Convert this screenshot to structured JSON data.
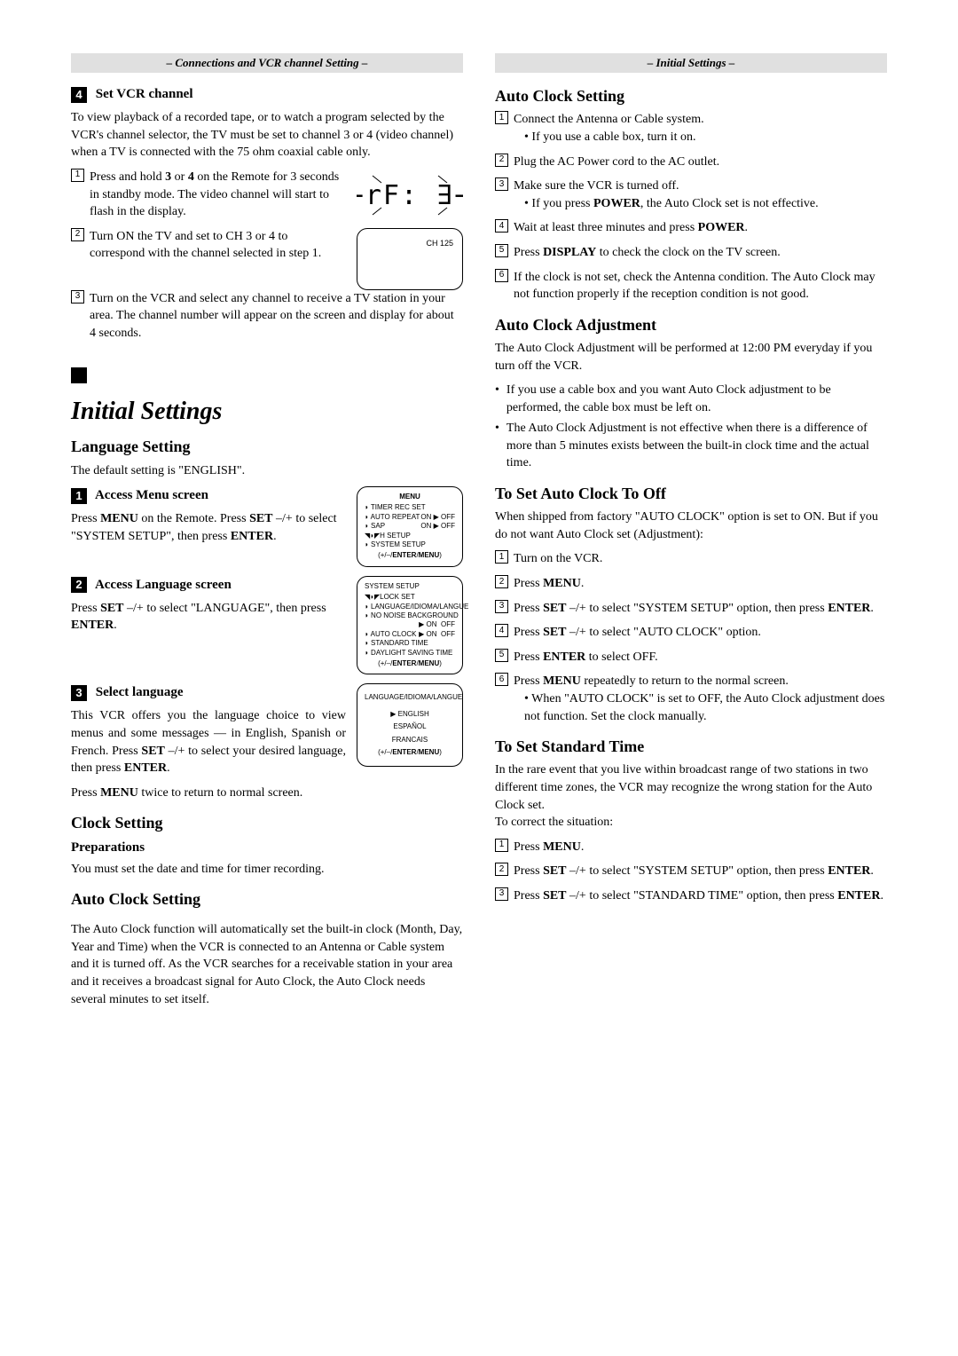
{
  "left": {
    "section_bar": "– Connections and VCR channel Setting –",
    "step4": {
      "num": "4",
      "title": "Set VCR channel",
      "intro": "To view playback of a recorded tape, or to watch a program selected by the VCR's channel selector, the TV must be set to channel 3 or 4 (video channel) when a TV is connected with the 75 ohm coaxial cable only.",
      "items": [
        "Press and hold 3 or 4 on the Remote for 3 seconds in standby mode. The video channel will start to flash in the display.",
        "Turn ON the TV and set to CH 3 or 4 to correspond with the channel selected in step 1.",
        "Turn on the VCR and select any channel to receive a TV station in your area. The channel number will appear on the screen and display for about 4 seconds."
      ],
      "seg_display": "−rF: ∃−",
      "ch_label": "CH 125"
    },
    "initial_title": "Initial Settings",
    "lang": {
      "heading": "Language Setting",
      "default": "The default setting is \"ENGLISH\".",
      "s1": {
        "num": "1",
        "title": "Access Menu screen",
        "body": "Press MENU on the Remote. Press SET –/+ to select \"SYSTEM SETUP\", then press ENTER."
      },
      "s2": {
        "num": "2",
        "title": "Access Language screen",
        "body": "Press SET –/+ to select \"LANGUAGE\", then press ENTER."
      },
      "s3": {
        "num": "3",
        "title": "Select language",
        "body": "This VCR offers you the language choice to view menus and some messages — in English, Spanish or French. Press SET –/+ to select your desired language, then press ENTER.",
        "tail": "Press MENU twice to return to normal screen."
      }
    },
    "menu1": {
      "hdr": "MENU",
      "rows": [
        [
          "◗ TIMER REC SET",
          ""
        ],
        [
          "◗ AUTO REPEAT",
          "ON ▶ OFF"
        ],
        [
          "◗ SAP",
          "ON ▶ OFF"
        ],
        [
          "◥◗◤H SETUP",
          ""
        ],
        [
          "◗ SYSTEM SETUP",
          ""
        ]
      ],
      "ftr": "(+/–/ENTER/MENU)"
    },
    "menu2": {
      "hdr": "SYSTEM SETUP",
      "rows": [
        [
          "◥◗◤LOCK SET",
          ""
        ],
        [
          "◗ LANGUAGE/IDIOMA/LANGUE",
          ""
        ],
        [
          "◗ NO NOISE BACKGROUND",
          ""
        ],
        [
          "",
          "▶ ON  OFF"
        ],
        [
          "◗ AUTO CLOCK",
          "▶ ON  OFF"
        ],
        [
          "◗ STANDARD TIME",
          ""
        ],
        [
          "◗ DAYLIGHT SAVING TIME",
          ""
        ]
      ],
      "ftr": "(+/–/ENTER/MENU)"
    },
    "menu3": {
      "hdr": "LANGUAGE/IDIOMA/LANGUE",
      "opts": [
        "▶ ENGLISH",
        "ESPAÑOL",
        "FRANCAIS"
      ],
      "ftr": "(+/–/ENTER/MENU)"
    },
    "clock": {
      "heading": "Clock Setting",
      "prep_h": "Preparations",
      "prep_b": "You must set the date and time for timer recording.",
      "auto_h": "Auto Clock Setting",
      "auto_b": "The Auto Clock function will automatically set the built-in clock (Month, Day, Year and Time) when the VCR is connected to an Antenna or Cable system and it is turned off. As the VCR searches for a receivable station in your area and it receives a broadcast signal for Auto Clock, the Auto Clock needs several minutes to set itself."
    }
  },
  "right": {
    "section_bar": "– Initial Settings –",
    "auto_set": {
      "heading": "Auto Clock Setting",
      "items": [
        {
          "t": "Connect the Antenna or Cable system.",
          "sub": "• If you use a cable box, turn it on."
        },
        {
          "t": "Plug the AC Power cord to the AC outlet."
        },
        {
          "t": "Make sure the VCR is turned off.",
          "sub": "• If you press POWER, the Auto Clock set is not effective."
        },
        {
          "t": "Wait at least three minutes and press POWER."
        },
        {
          "t": "Press DISPLAY to check the clock on the TV screen."
        },
        {
          "t": "If the clock is not set, check the Antenna condition. The Auto Clock may not function properly if the reception condition is not good."
        }
      ]
    },
    "auto_adj": {
      "heading": "Auto Clock Adjustment",
      "body": "The Auto Clock Adjustment will be performed at 12:00 PM everyday if you turn off the VCR.",
      "bullets": [
        "If you use a cable box and you want Auto Clock adjustment to be performed, the cable box must be left on.",
        "The Auto Clock Adjustment is not effective when there is a difference of more than 5 minutes exists between the built-in clock time and the actual time."
      ]
    },
    "auto_off": {
      "heading": "To Set Auto Clock To Off",
      "intro": "When shipped from factory \"AUTO CLOCK\" option is set to ON. But if you do not want Auto Clock set (Adjustment):",
      "items": [
        {
          "t": "Turn on the VCR."
        },
        {
          "t": "Press MENU."
        },
        {
          "t": "Press SET –/+ to select \"SYSTEM SETUP\" option, then press ENTER."
        },
        {
          "t": "Press SET –/+ to select \"AUTO CLOCK\" option."
        },
        {
          "t": "Press ENTER to select OFF."
        },
        {
          "t": "Press MENU repeatedly to return to the normal screen.",
          "sub": "• When \"AUTO CLOCK\" is set to OFF, the Auto Clock adjustment does not function. Set the clock manually."
        }
      ]
    },
    "std_time": {
      "heading": "To Set Standard Time",
      "intro": "In the rare event that you live within broadcast range of two stations in two different time zones, the VCR may recognize the wrong station for the Auto Clock set.\nTo correct the situation:",
      "items": [
        "Press MENU.",
        "Press SET –/+ to select \"SYSTEM SETUP\" option, then press ENTER.",
        "Press SET –/+ to select \"STANDARD TIME\" option, then press ENTER."
      ]
    }
  }
}
